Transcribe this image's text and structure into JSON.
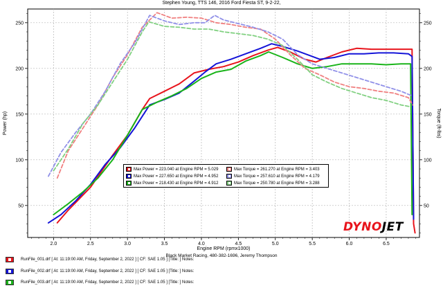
{
  "title": "Stephen Young, TTS 146, 2016 Ford Fiesta ST, 9-2-22,",
  "footer": "Black Market Racing, 480-382-1696, Jeremy Thompson",
  "logo": {
    "part1": "DYNO",
    "part2": "JET"
  },
  "runfiles": [
    {
      "label": "RunFile_001.drf [ At: 11:19:00 AM, Friday, September 2, 2022 ] [ CF: SAE 1.05 ] [Title: ]  Notes:",
      "color": "#e8141c"
    },
    {
      "label": "RunFile_002.drf [ At: 11:19:00 AM, Friday, September 2, 2022 ] [ CF: SAE 1.05 ] [Title: ]  Notes:",
      "color": "#1414d8"
    },
    {
      "label": "RunFile_003.drf [ At: 11:19:00 AM, Friday, September 2, 2022 ] [ CF: SAE 1.05 ] [Title: ]  Notes:",
      "color": "#19b419"
    }
  ],
  "chart_data": {
    "type": "line",
    "title": "Stephen Young, TTS 146, 2016 Ford Fiesta ST, 9-2-22,",
    "xlabel": "Engine RPM (rpmx1000)",
    "ylabel": "Power (hp)",
    "y2label": "Torque (ft-lbs)",
    "xlim": [
      1.65,
      6.95
    ],
    "ylim": [
      15,
      265
    ],
    "xticks": [
      "2.0",
      "2.5",
      "3.0",
      "3.5",
      "4.0",
      "4.5",
      "5.0",
      "5.5",
      "6.0",
      "6.5"
    ],
    "xtick_values": [
      2.0,
      2.5,
      3.0,
      3.5,
      4.0,
      4.5,
      5.0,
      5.5,
      6.0,
      6.5
    ],
    "yticks": [
      50,
      100,
      150,
      200,
      250
    ],
    "grid": true,
    "legend": [
      {
        "text": "Max Power = 223.040 at Engine RPM = 5.029",
        "color": "#e8141c"
      },
      {
        "text": "Max Torque = 261.270 at Engine RPM = 3.403",
        "color": "#f08080"
      },
      {
        "text": "Max Power = 227.650 at Engine RPM = 4.952",
        "color": "#1414d8"
      },
      {
        "text": "Max Torque = 257.610 at Engine RPM = 4.179",
        "color": "#9090e8"
      },
      {
        "text": "Max Power = 218.430 at Engine RPM = 4.912",
        "color": "#19b419"
      },
      {
        "text": "Max Torque = 250.780 at Engine RPM = 3.288",
        "color": "#80d080"
      }
    ],
    "series": [
      {
        "kind": "power",
        "color": "#e8141c",
        "x": [
          2.05,
          2.2,
          2.5,
          2.8,
          3.0,
          3.2,
          3.3,
          3.5,
          3.7,
          3.9,
          4.1,
          4.3,
          4.5,
          4.7,
          4.9,
          5.03,
          5.2,
          5.4,
          5.55,
          5.7,
          5.9,
          6.1,
          6.3,
          6.5,
          6.7,
          6.85,
          6.87,
          6.89
        ],
        "y": [
          31,
          45,
          70,
          105,
          127,
          155,
          167,
          175,
          183,
          195,
          199,
          202,
          207,
          214,
          220,
          223,
          218,
          210,
          207,
          212,
          218,
          222,
          221,
          221,
          221,
          221,
          30,
          20
        ]
      },
      {
        "kind": "power",
        "color": "#1414d8",
        "x": [
          1.93,
          2.1,
          2.3,
          2.5,
          2.7,
          2.9,
          3.1,
          3.3,
          3.5,
          3.7,
          3.9,
          4.05,
          4.2,
          4.4,
          4.6,
          4.8,
          4.95,
          5.1,
          5.3,
          5.5,
          5.6,
          5.8,
          6.0,
          6.2,
          6.4,
          6.6,
          6.8,
          6.85,
          6.87
        ],
        "y": [
          31,
          40,
          55,
          73,
          95,
          113,
          135,
          160,
          166,
          173,
          186,
          196,
          205,
          210,
          216,
          222,
          227,
          224,
          219,
          213,
          210,
          212,
          216,
          216,
          217,
          217,
          216,
          213,
          35
        ]
      },
      {
        "kind": "power",
        "color": "#19b419",
        "x": [
          2.0,
          2.2,
          2.4,
          2.6,
          2.8,
          3.0,
          3.2,
          3.4,
          3.6,
          3.8,
          4.0,
          4.2,
          4.4,
          4.6,
          4.8,
          4.91,
          5.1,
          5.3,
          5.5,
          5.7,
          5.9,
          6.1,
          6.3,
          6.5,
          6.7,
          6.83,
          6.85
        ],
        "y": [
          40,
          52,
          65,
          80,
          100,
          127,
          155,
          163,
          170,
          178,
          189,
          196,
          199,
          208,
          214,
          218,
          212,
          205,
          200,
          202,
          205,
          205,
          205,
          204,
          205,
          205,
          40
        ]
      },
      {
        "kind": "torque",
        "color": "#f08080",
        "x": [
          2.05,
          2.2,
          2.4,
          2.6,
          2.8,
          3.0,
          3.2,
          3.4,
          3.6,
          3.8,
          4.0,
          4.2,
          4.4,
          4.6,
          4.8,
          5.0,
          5.2,
          5.4,
          5.6,
          5.8,
          6.0,
          6.2,
          6.4,
          6.6,
          6.8,
          6.86
        ],
        "y": [
          80,
          110,
          135,
          160,
          190,
          215,
          245,
          261,
          255,
          256,
          255,
          250,
          248,
          245,
          243,
          232,
          215,
          200,
          193,
          185,
          180,
          178,
          175,
          173,
          168,
          160
        ]
      },
      {
        "kind": "torque",
        "color": "#9090e8",
        "x": [
          1.93,
          2.1,
          2.3,
          2.5,
          2.7,
          2.9,
          3.1,
          3.3,
          3.5,
          3.7,
          3.9,
          4.05,
          4.18,
          4.3,
          4.5,
          4.7,
          4.9,
          5.1,
          5.3,
          5.5,
          5.7,
          5.9,
          6.1,
          6.3,
          6.5,
          6.7,
          6.85
        ],
        "y": [
          82,
          108,
          130,
          150,
          175,
          205,
          228,
          258,
          252,
          248,
          250,
          250,
          258,
          253,
          249,
          245,
          240,
          232,
          215,
          205,
          200,
          195,
          190,
          185,
          180,
          175,
          170
        ]
      },
      {
        "kind": "torque",
        "color": "#80d080",
        "x": [
          2.0,
          2.2,
          2.4,
          2.6,
          2.8,
          3.0,
          3.2,
          3.29,
          3.5,
          3.7,
          3.9,
          4.1,
          4.3,
          4.5,
          4.7,
          4.9,
          5.1,
          5.3,
          5.5,
          5.7,
          5.9,
          6.1,
          6.3,
          6.5,
          6.7,
          6.83
        ],
        "y": [
          88,
          112,
          140,
          160,
          185,
          210,
          240,
          251,
          246,
          245,
          243,
          243,
          240,
          238,
          236,
          232,
          225,
          210,
          193,
          185,
          178,
          173,
          168,
          165,
          160,
          158
        ]
      }
    ]
  }
}
